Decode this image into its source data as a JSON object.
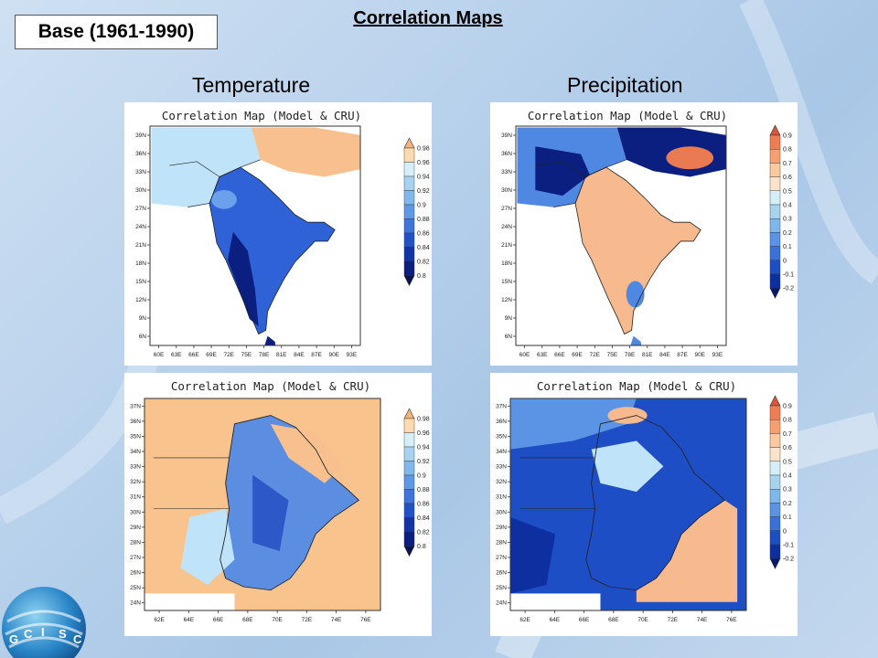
{
  "header": {
    "base_label": "Base (1961-1990)",
    "title": "Correlation Maps",
    "columns": {
      "left": "Temperature",
      "right": "Precipitation"
    }
  },
  "logo": {
    "text": "GCISC",
    "letters": [
      "G",
      "C",
      "I",
      "S",
      "C"
    ]
  },
  "panels": [
    {
      "id": "temp-south-asia",
      "title": "Correlation Map (Model & CRU)",
      "variable": "Temperature",
      "region": "south-asia",
      "x_ticks": [
        "60E",
        "63E",
        "66E",
        "69E",
        "72E",
        "75E",
        "78E",
        "81E",
        "84E",
        "87E",
        "90E",
        "93E"
      ],
      "y_ticks": [
        "39N",
        "36N",
        "33N",
        "30N",
        "27N",
        "24N",
        "21N",
        "18N",
        "15N",
        "12N",
        "9N",
        "6N"
      ],
      "colorbar": {
        "labels": [
          "0.98",
          "0.96",
          "0.94",
          "0.92",
          "0.9",
          "0.88",
          "0.86",
          "0.84",
          "0.82",
          "0.8"
        ],
        "colors": [
          "#f5b57a",
          "#fddab0",
          "#d6f0fa",
          "#a7d3f0",
          "#80b8ec",
          "#5f98e6",
          "#3f74da",
          "#2352c8",
          "#1234a6",
          "#0a1f80",
          "#061450"
        ]
      },
      "map_colors": {
        "land": "#2e62d6",
        "low": "#0a1f80",
        "mid": "#6ba0ec",
        "high": "#f7c08e",
        "light": "#bfe3f8"
      }
    },
    {
      "id": "precip-south-asia",
      "title": "Correlation Map (Model & CRU)",
      "variable": "Precipitation",
      "region": "south-asia",
      "x_ticks": [
        "60E",
        "63E",
        "66E",
        "69E",
        "72E",
        "75E",
        "78E",
        "81E",
        "84E",
        "87E",
        "90E",
        "93E"
      ],
      "y_ticks": [
        "39N",
        "36N",
        "33N",
        "30N",
        "27N",
        "24N",
        "21N",
        "18N",
        "15N",
        "12N",
        "9N",
        "6N"
      ],
      "colorbar": {
        "labels": [
          "0.9",
          "0.8",
          "0.7",
          "0.6",
          "0.5",
          "0.4",
          "0.3",
          "0.2",
          "0.1",
          "0",
          "-0.1",
          "-0.2"
        ],
        "colors": [
          "#d9553a",
          "#ef7c52",
          "#f6a071",
          "#fbc9a0",
          "#fde3cb",
          "#d6eefa",
          "#a7d3f0",
          "#7fb6ec",
          "#5b94e4",
          "#3a70d8",
          "#1e4ec6",
          "#0d2fa0",
          "#06186b"
        ]
      },
      "map_colors": {
        "land": "#f7ba8e",
        "low": "#0a1f80",
        "mid": "#4f88e2",
        "high": "#ea7a52",
        "light": "#bfe3f8"
      }
    },
    {
      "id": "temp-pakistan",
      "title": "Correlation Map (Model & CRU)",
      "variable": "Temperature",
      "region": "pakistan",
      "x_ticks": [
        "62E",
        "64E",
        "66E",
        "68E",
        "70E",
        "72E",
        "74E",
        "76E"
      ],
      "y_ticks": [
        "37N",
        "36N",
        "35N",
        "34N",
        "33N",
        "32N",
        "31N",
        "30N",
        "29N",
        "28N",
        "27N",
        "26N",
        "25N",
        "24N"
      ],
      "colorbar": {
        "labels": [
          "0.98",
          "0.96",
          "0.94",
          "0.92",
          "0.9",
          "0.88",
          "0.86",
          "0.84",
          "0.82",
          "0.8"
        ],
        "colors": [
          "#f5b57a",
          "#fddab0",
          "#d6f0fa",
          "#a7d3f0",
          "#80b8ec",
          "#5f98e6",
          "#3f74da",
          "#2352c8",
          "#1234a6",
          "#0a1f80",
          "#061450"
        ]
      },
      "map_colors": {
        "land": "#f9c38e",
        "low": "#2c58c8",
        "mid": "#5b8ee0",
        "high": "#f7c08e",
        "light": "#bfe3f8"
      }
    },
    {
      "id": "precip-pakistan",
      "title": "Correlation Map (Model & CRU)",
      "variable": "Precipitation",
      "region": "pakistan",
      "x_ticks": [
        "62E",
        "64E",
        "66E",
        "68E",
        "70E",
        "72E",
        "74E",
        "76E"
      ],
      "y_ticks": [
        "37N",
        "36N",
        "35N",
        "34N",
        "33N",
        "32N",
        "31N",
        "30N",
        "29N",
        "28N",
        "27N",
        "26N",
        "25N",
        "24N"
      ],
      "colorbar": {
        "labels": [
          "0.9",
          "0.8",
          "0.7",
          "0.6",
          "0.5",
          "0.4",
          "0.3",
          "0.2",
          "0.1",
          "0",
          "-0.1",
          "-0.2"
        ],
        "colors": [
          "#d9553a",
          "#ef7c52",
          "#f6a071",
          "#fbc9a0",
          "#fde3cb",
          "#d6eefa",
          "#a7d3f0",
          "#7fb6ec",
          "#5b94e4",
          "#3a70d8",
          "#1e4ec6",
          "#0d2fa0",
          "#06186b"
        ]
      },
      "map_colors": {
        "land": "#f7ba8e",
        "low": "#1e4ec6",
        "mid": "#5b94e4",
        "high": "#f3a878",
        "light": "#bfe3f8"
      }
    }
  ]
}
